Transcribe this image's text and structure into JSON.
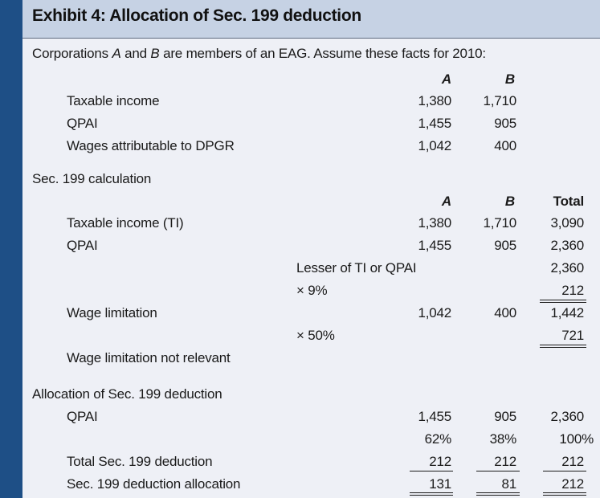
{
  "title": "Exhibit 4: Allocation of Sec. 199 deduction",
  "intro": {
    "pre": "Corporations ",
    "a": "A",
    "and": " and ",
    "b": "B",
    "post": " are members of an EAG. Assume these facts for 2010:"
  },
  "facts": {
    "col_a": "A",
    "col_b": "B",
    "rows": [
      {
        "label": "Taxable income",
        "a": "1,380",
        "b": "1,710"
      },
      {
        "label": "QPAI",
        "a": "1,455",
        "b": "905"
      },
      {
        "label": "Wages attributable to DPGR",
        "a": "1,042",
        "b": "400"
      }
    ]
  },
  "calc": {
    "heading": "Sec. 199 calculation",
    "col_a": "A",
    "col_b": "B",
    "col_total": "Total",
    "ti": {
      "label": "Taxable income (TI)",
      "a": "1,380",
      "b": "1,710",
      "total": "3,090"
    },
    "qpai": {
      "label": "QPAI",
      "a": "1,455",
      "b": "905",
      "total": "2,360"
    },
    "lesser": {
      "label": "Lesser of TI or QPAI",
      "total": "2,360"
    },
    "x9": {
      "label": "× 9%",
      "total": "212"
    },
    "wage": {
      "label": "Wage limitation",
      "a": "1,042",
      "b": "400",
      "total": "1,442"
    },
    "x50": {
      "label": "× 50%",
      "total": "721"
    },
    "not_relevant": "Wage limitation not relevant"
  },
  "alloc": {
    "heading": "Allocation of Sec. 199 deduction",
    "qpai": {
      "label": "QPAI",
      "a": "1,455",
      "b": "905",
      "total": "2,360"
    },
    "pct": {
      "a": "62%",
      "b": "38%",
      "total": "100%"
    },
    "total_ded": {
      "label": "Total Sec. 199 deduction",
      "a": "212",
      "b": "212",
      "total": "212"
    },
    "allocation": {
      "label": "Sec. 199 deduction allocation",
      "a": "131",
      "b": "81",
      "total": "212"
    }
  },
  "colors": {
    "sidebar": "#1e4f86",
    "titlebar": "#c6d2e4",
    "background": "#eef0f6"
  }
}
